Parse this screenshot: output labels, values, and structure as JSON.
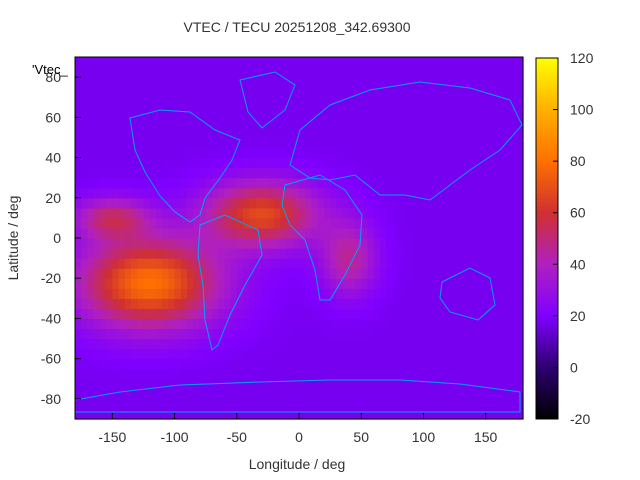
{
  "chart_data": {
    "type": "heatmap",
    "title": "VTEC / TECU 20251208_342.69300",
    "xlabel": "Longitude / deg",
    "ylabel": "Latitude / deg",
    "key_label": "'Vtec_",
    "xlim": [
      -180,
      180
    ],
    "ylim": [
      -90,
      90
    ],
    "x_ticks": [
      -150,
      -100,
      -50,
      0,
      50,
      100,
      150
    ],
    "y_ticks": [
      -80,
      -60,
      -40,
      -20,
      0,
      20,
      40,
      60,
      80
    ],
    "colorbar": {
      "range": [
        -20,
        120
      ],
      "ticks": [
        -20,
        0,
        20,
        40,
        60,
        80,
        100,
        120
      ],
      "colormap": [
        "#000000",
        "#2d0070",
        "#8000ff",
        "#b020c0",
        "#d03030",
        "#ff7000",
        "#ffb000",
        "#ffff00"
      ]
    },
    "background_tec": 18,
    "features": [
      {
        "lon": -120,
        "lat": -22,
        "peak": 80,
        "slon": 55,
        "slat": 22
      },
      {
        "lon": -30,
        "lat": 12,
        "peak": 68,
        "slon": 45,
        "slat": 16
      },
      {
        "lon": 40,
        "lat": -10,
        "peak": 46,
        "slon": 22,
        "slat": 18
      },
      {
        "lon": -150,
        "lat": 10,
        "peak": 50,
        "slon": 30,
        "slat": 10
      }
    ],
    "grid": false,
    "colors": {
      "coastline": "#00a0ff",
      "text": "#333333"
    }
  }
}
